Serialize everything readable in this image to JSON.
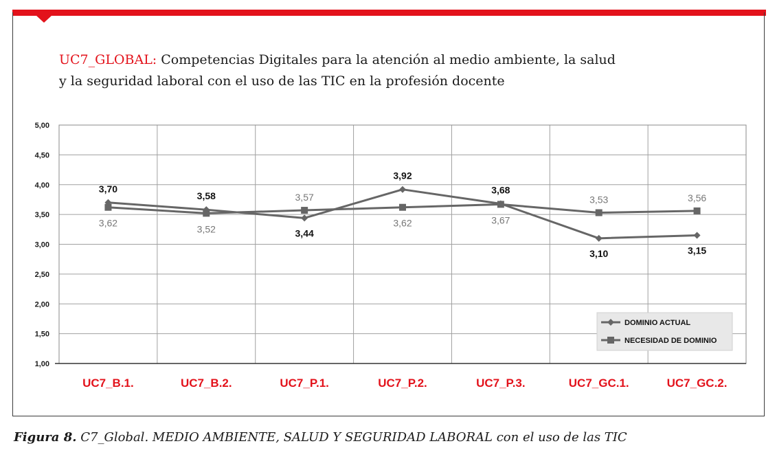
{
  "title": {
    "prefix": "UC7_GLOBAL:",
    "line1": "Competencias Digitales para la atención al medio ambiente, la salud",
    "line2": "y la seguridad laboral con el uso de las TIC en la profesión docente"
  },
  "caption": {
    "label": "Figura 8.",
    "text": "C7_Global. MEDIO AMBIENTE, SALUD Y SEGURIDAD LABORAL con el uso de  las TIC"
  },
  "colors": {
    "accent": "#e3121b",
    "series_line": "#666666",
    "grid": "#a0a0a0"
  },
  "chart_data": {
    "type": "line",
    "categories": [
      "UC7_B.1.",
      "UC7_B.2.",
      "UC7_P.1.",
      "UC7_P.2.",
      "UC7_P.3.",
      "UC7_GC.1.",
      "UC7_GC.2."
    ],
    "ylim": [
      1.0,
      5.0
    ],
    "yticks": [
      "1,00",
      "1,50",
      "2,00",
      "2,50",
      "3,00",
      "3,50",
      "4,00",
      "4,50",
      "5,00"
    ],
    "grid": true,
    "legend_position": "bottom-right",
    "series": [
      {
        "name": "DOMINIO ACTUAL",
        "marker": "diamond",
        "values": [
          3.7,
          3.58,
          3.44,
          3.92,
          3.68,
          3.1,
          3.15
        ],
        "labels": [
          "3,70",
          "3,58",
          "3,44",
          "3,92",
          "3,68",
          "3,10",
          "3,15"
        ]
      },
      {
        "name": "NECESIDAD DE DOMINIO",
        "marker": "square",
        "values": [
          3.62,
          3.52,
          3.57,
          3.62,
          3.67,
          3.53,
          3.56
        ],
        "labels": [
          "3,62",
          "3,52",
          "3,57",
          "3,62",
          "3,67",
          "3,53",
          "3,56"
        ]
      }
    ]
  }
}
